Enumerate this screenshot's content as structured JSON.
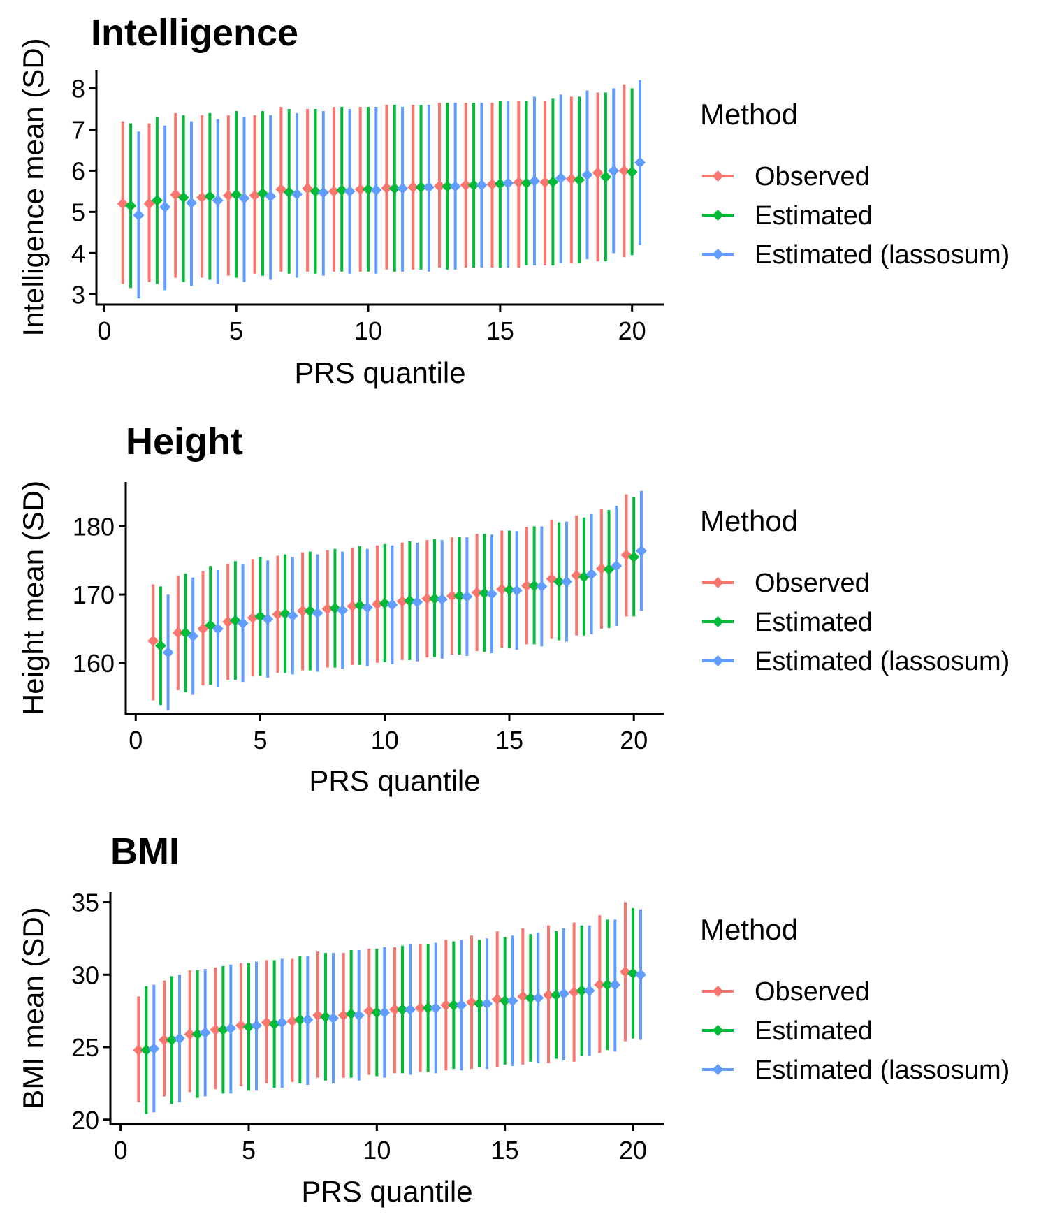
{
  "legend": {
    "title": "Method",
    "items": [
      {
        "label": "Observed",
        "color": "#F8766D"
      },
      {
        "label": "Estimated",
        "color": "#00BA38"
      },
      {
        "label": "Estimated (lassosum)",
        "color": "#619CFF"
      }
    ]
  },
  "chart_data": [
    {
      "type": "errorbar",
      "title": "Intelligence",
      "xlabel": "PRS quantile",
      "ylabel": "Intelligence mean (SD)",
      "xlim": [
        -0.3,
        21.2
      ],
      "ylim": [
        2.75,
        8.45
      ],
      "xticks": [
        0,
        5,
        10,
        15,
        20
      ],
      "yticks": [
        3,
        4,
        5,
        6,
        7,
        8
      ],
      "x": [
        1,
        2,
        3,
        4,
        5,
        6,
        7,
        8,
        9,
        10,
        11,
        12,
        13,
        14,
        15,
        16,
        17,
        18,
        19,
        20
      ],
      "dodge": 0.3,
      "series": [
        {
          "name": "Observed",
          "color": "#F8766D",
          "mean": [
            5.2,
            5.2,
            5.42,
            5.35,
            5.4,
            5.4,
            5.55,
            5.57,
            5.5,
            5.55,
            5.58,
            5.6,
            5.63,
            5.65,
            5.67,
            5.72,
            5.72,
            5.8,
            5.95,
            6.0
          ],
          "lower": [
            3.25,
            3.3,
            3.4,
            3.4,
            3.45,
            3.5,
            3.55,
            3.55,
            3.55,
            3.55,
            3.6,
            3.6,
            3.65,
            3.65,
            3.65,
            3.65,
            3.7,
            3.75,
            3.8,
            3.9
          ],
          "upper": [
            7.2,
            7.15,
            7.4,
            7.35,
            7.35,
            7.35,
            7.55,
            7.5,
            7.55,
            7.55,
            7.6,
            7.6,
            7.65,
            7.65,
            7.65,
            7.7,
            7.7,
            7.8,
            7.9,
            8.1
          ]
        },
        {
          "name": "Estimated",
          "color": "#00BA38",
          "mean": [
            5.15,
            5.28,
            5.35,
            5.38,
            5.42,
            5.45,
            5.48,
            5.5,
            5.53,
            5.55,
            5.57,
            5.6,
            5.62,
            5.65,
            5.68,
            5.7,
            5.73,
            5.78,
            5.85,
            5.97
          ],
          "lower": [
            3.15,
            3.25,
            3.3,
            3.35,
            3.4,
            3.45,
            3.5,
            3.5,
            3.55,
            3.55,
            3.55,
            3.6,
            3.6,
            3.65,
            3.65,
            3.7,
            3.7,
            3.75,
            3.8,
            3.95
          ],
          "upper": [
            7.15,
            7.3,
            7.35,
            7.4,
            7.45,
            7.45,
            7.5,
            7.5,
            7.55,
            7.55,
            7.6,
            7.6,
            7.65,
            7.65,
            7.7,
            7.7,
            7.75,
            7.8,
            7.9,
            8.0
          ]
        },
        {
          "name": "Estimated (lassosum)",
          "color": "#619CFF",
          "mean": [
            4.92,
            5.12,
            5.22,
            5.28,
            5.33,
            5.38,
            5.43,
            5.47,
            5.5,
            5.53,
            5.57,
            5.6,
            5.62,
            5.65,
            5.7,
            5.75,
            5.82,
            5.9,
            6.0,
            6.2
          ],
          "lower": [
            2.9,
            3.1,
            3.2,
            3.25,
            3.3,
            3.35,
            3.4,
            3.45,
            3.5,
            3.5,
            3.55,
            3.55,
            3.6,
            3.65,
            3.65,
            3.7,
            3.75,
            3.85,
            4.0,
            4.2
          ],
          "upper": [
            6.95,
            7.1,
            7.2,
            7.25,
            7.3,
            7.35,
            7.4,
            7.45,
            7.5,
            7.55,
            7.55,
            7.6,
            7.65,
            7.65,
            7.7,
            7.8,
            7.85,
            7.95,
            8.0,
            8.2
          ]
        }
      ]
    },
    {
      "type": "errorbar",
      "title": "Height",
      "xlabel": "PRS quantile",
      "ylabel": "Height mean (SD)",
      "xlim": [
        -0.4,
        21.2
      ],
      "ylim": [
        152.5,
        186.5
      ],
      "xticks": [
        0,
        5,
        10,
        15,
        20
      ],
      "yticks": [
        160,
        170,
        180
      ],
      "x": [
        1,
        2,
        3,
        4,
        5,
        6,
        7,
        8,
        9,
        10,
        11,
        12,
        13,
        14,
        15,
        16,
        17,
        18,
        19,
        20
      ],
      "dodge": 0.3,
      "series": [
        {
          "name": "Observed",
          "color": "#F8766D",
          "mean": [
            163.2,
            164.4,
            165.0,
            166.0,
            166.6,
            167.1,
            167.6,
            167.9,
            168.3,
            168.6,
            169.0,
            169.4,
            169.8,
            170.3,
            170.8,
            171.3,
            172.3,
            172.8,
            173.8,
            175.8
          ],
          "lower": [
            154.5,
            156.0,
            156.7,
            157.5,
            158.0,
            158.5,
            158.9,
            159.3,
            159.7,
            160.0,
            160.4,
            160.8,
            161.2,
            161.7,
            162.2,
            162.7,
            163.5,
            164.0,
            165.0,
            166.8
          ],
          "upper": [
            171.5,
            172.8,
            173.4,
            174.5,
            175.2,
            175.7,
            176.2,
            176.5,
            176.9,
            177.2,
            177.6,
            178.0,
            178.4,
            178.9,
            179.4,
            179.9,
            181.0,
            181.6,
            182.6,
            184.7
          ]
        },
        {
          "name": "Estimated",
          "color": "#00BA38",
          "mean": [
            162.5,
            164.4,
            165.5,
            166.2,
            166.8,
            167.2,
            167.6,
            168.0,
            168.4,
            168.7,
            169.1,
            169.4,
            169.8,
            170.2,
            170.7,
            171.3,
            171.9,
            172.6,
            173.7,
            175.5
          ],
          "lower": [
            153.8,
            155.7,
            156.8,
            157.5,
            158.1,
            158.5,
            158.9,
            159.3,
            159.7,
            160.1,
            160.4,
            160.8,
            161.2,
            161.6,
            162.1,
            162.7,
            163.3,
            164.0,
            165.1,
            166.8
          ],
          "upper": [
            171.2,
            173.1,
            174.2,
            174.9,
            175.5,
            175.9,
            176.3,
            176.7,
            177.1,
            177.4,
            177.8,
            178.1,
            178.5,
            178.9,
            179.4,
            180.0,
            180.6,
            181.3,
            182.4,
            184.3
          ]
        },
        {
          "name": "Estimated (lassosum)",
          "color": "#619CFF",
          "mean": [
            161.5,
            163.9,
            165.0,
            165.8,
            166.4,
            166.9,
            167.3,
            167.7,
            168.1,
            168.5,
            168.9,
            169.3,
            169.7,
            170.1,
            170.6,
            171.2,
            171.9,
            173.0,
            174.2,
            176.4
          ],
          "lower": [
            153.0,
            155.3,
            156.4,
            157.2,
            157.8,
            158.3,
            158.7,
            159.1,
            159.5,
            159.8,
            160.2,
            160.6,
            161.0,
            161.4,
            161.9,
            162.4,
            163.1,
            164.2,
            165.4,
            167.6
          ],
          "upper": [
            170.0,
            172.5,
            173.6,
            174.4,
            175.0,
            175.5,
            175.9,
            176.3,
            176.7,
            177.2,
            177.6,
            178.0,
            178.4,
            178.8,
            179.3,
            180.0,
            180.7,
            181.8,
            183.0,
            185.2
          ]
        }
      ]
    },
    {
      "type": "errorbar",
      "title": "BMI",
      "xlabel": "PRS quantile",
      "ylabel": "BMI mean (SD)",
      "xlim": [
        -0.4,
        21.2
      ],
      "ylim": [
        19.7,
        35.7
      ],
      "xticks": [
        0,
        5,
        10,
        15,
        20
      ],
      "yticks": [
        20,
        25,
        30,
        35
      ],
      "x": [
        1,
        2,
        3,
        4,
        5,
        6,
        7,
        8,
        9,
        10,
        11,
        12,
        13,
        14,
        15,
        16,
        17,
        18,
        19,
        20
      ],
      "dodge": 0.3,
      "series": [
        {
          "name": "Observed",
          "color": "#F8766D",
          "mean": [
            24.8,
            25.5,
            25.9,
            26.2,
            26.5,
            26.7,
            26.8,
            27.2,
            27.2,
            27.5,
            27.6,
            27.7,
            27.9,
            28.1,
            28.3,
            28.5,
            28.6,
            28.8,
            29.3,
            30.2
          ],
          "lower": [
            21.2,
            21.6,
            21.9,
            22.1,
            22.3,
            22.5,
            22.6,
            22.9,
            22.9,
            23.1,
            23.2,
            23.3,
            23.4,
            23.5,
            23.6,
            23.8,
            23.9,
            24.0,
            24.6,
            25.4
          ],
          "upper": [
            28.5,
            29.6,
            30.3,
            30.5,
            30.8,
            31.0,
            31.1,
            31.6,
            31.5,
            31.8,
            31.9,
            32.1,
            32.4,
            32.7,
            33.0,
            33.2,
            33.4,
            33.6,
            34.1,
            35.0
          ]
        },
        {
          "name": "Estimated",
          "color": "#00BA38",
          "mean": [
            24.8,
            25.5,
            25.9,
            26.2,
            26.4,
            26.6,
            26.9,
            27.1,
            27.3,
            27.4,
            27.6,
            27.7,
            27.9,
            28.0,
            28.2,
            28.4,
            28.6,
            28.9,
            29.3,
            30.1
          ],
          "lower": [
            20.4,
            21.1,
            21.5,
            21.8,
            22.0,
            22.2,
            22.5,
            22.7,
            22.9,
            23.0,
            23.2,
            23.3,
            23.5,
            23.6,
            23.8,
            24.0,
            24.2,
            24.4,
            24.8,
            25.6
          ],
          "upper": [
            29.2,
            29.9,
            30.3,
            30.6,
            30.8,
            31.0,
            31.3,
            31.5,
            31.7,
            31.8,
            32.0,
            32.1,
            32.3,
            32.4,
            32.6,
            32.8,
            33.0,
            33.4,
            33.8,
            34.6
          ]
        },
        {
          "name": "Estimated (lassosum)",
          "color": "#619CFF",
          "mean": [
            24.9,
            25.6,
            26.0,
            26.3,
            26.5,
            26.7,
            26.9,
            27.0,
            27.2,
            27.4,
            27.6,
            27.7,
            27.9,
            28.0,
            28.2,
            28.4,
            28.7,
            28.9,
            29.3,
            30.0
          ],
          "lower": [
            20.5,
            21.2,
            21.6,
            21.8,
            22.0,
            22.2,
            22.4,
            22.5,
            22.7,
            22.9,
            23.1,
            23.2,
            23.4,
            23.5,
            23.7,
            23.9,
            24.1,
            24.4,
            24.7,
            25.5
          ],
          "upper": [
            29.3,
            30.0,
            30.4,
            30.7,
            30.9,
            31.1,
            31.3,
            31.5,
            31.7,
            31.9,
            32.1,
            32.2,
            32.4,
            32.5,
            32.7,
            32.9,
            33.2,
            33.4,
            33.8,
            34.5
          ]
        }
      ]
    }
  ]
}
